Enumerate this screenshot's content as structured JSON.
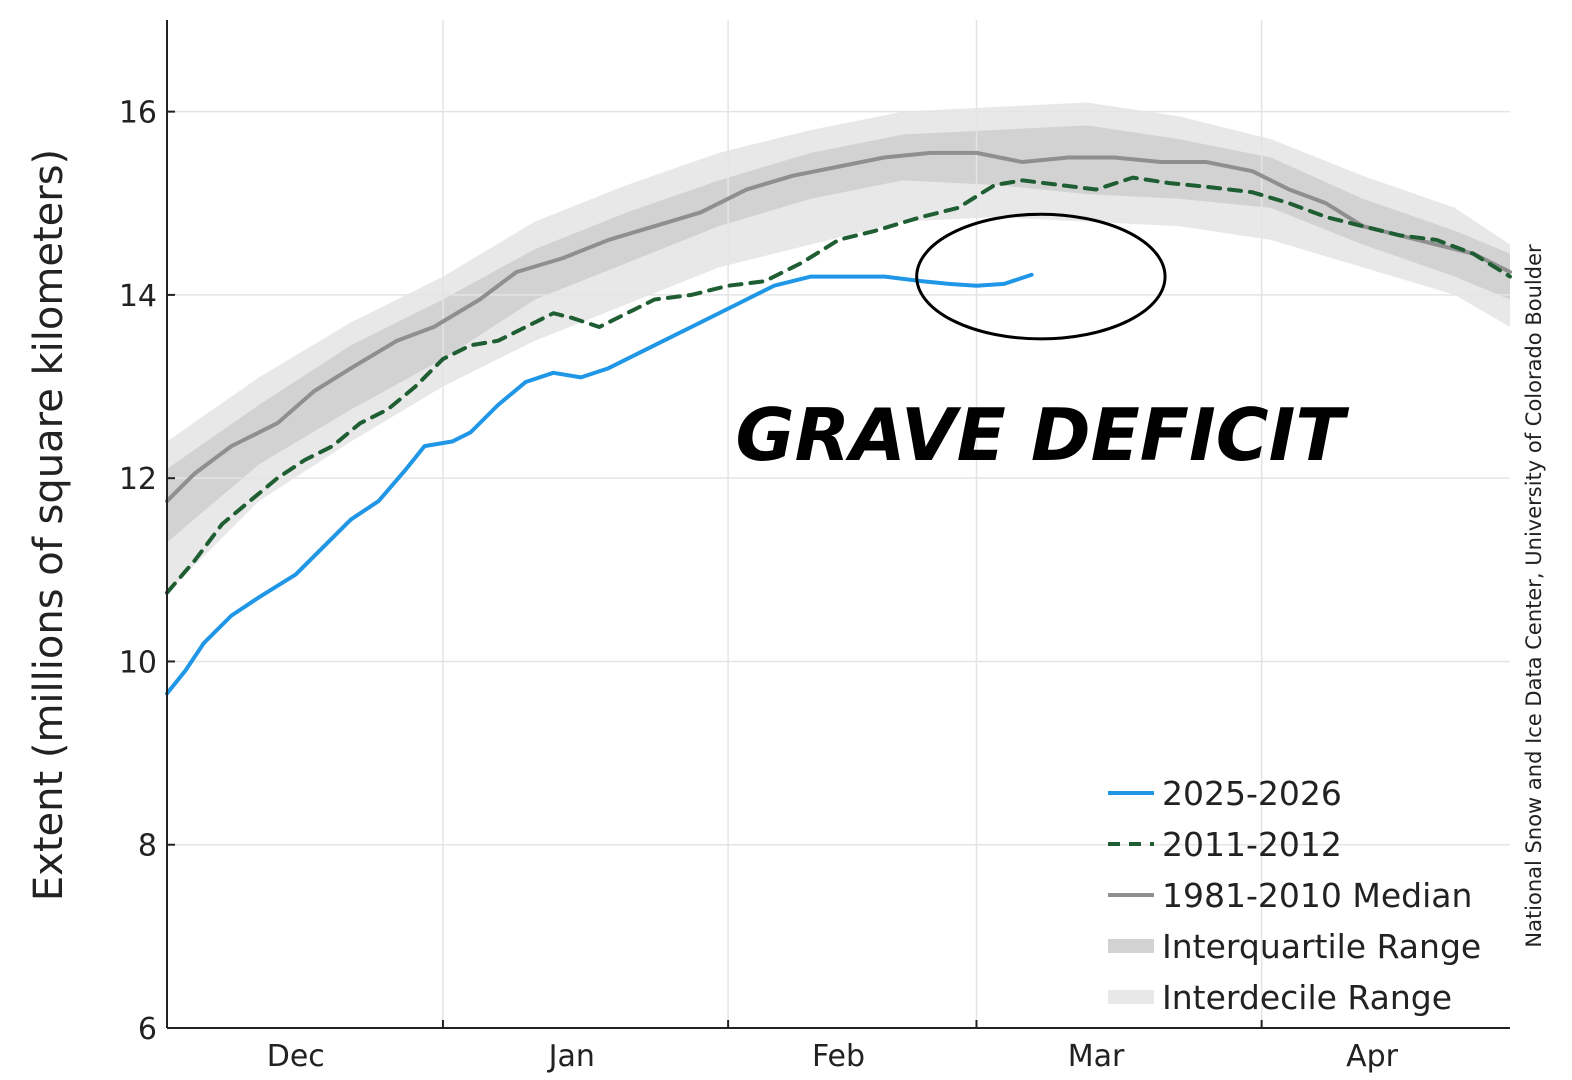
{
  "chart_data": {
    "type": "line",
    "title": "",
    "xlabel": "",
    "ylabel": "Extent (millions of square kilometers)",
    "ylim": [
      6,
      17
    ],
    "xlim": [
      0,
      146
    ],
    "y_ticks": [
      6,
      8,
      10,
      12,
      14,
      16
    ],
    "x_ticks": [
      {
        "label": "Dec",
        "x": 14
      },
      {
        "label": "Jan",
        "x": 44
      },
      {
        "label": "Feb",
        "x": 73
      },
      {
        "label": "Mar",
        "x": 101
      },
      {
        "label": "Apr",
        "x": 131
      }
    ],
    "x_gridlines": [
      30,
      61,
      88,
      119
    ],
    "grid": true,
    "legend_position": "bottom-right",
    "annotation_text": "GRAVE DEFICIT",
    "credit": "National Snow and Ice Data Center, University of Colorado Boulder",
    "colors": {
      "current": "#1f97e6",
      "y2011": "#1e5e32",
      "median": "#8f8f8f",
      "interquartile": "#d2d2d2",
      "interdecile": "#e8e8e8"
    },
    "series": [
      {
        "name": "2025-2026",
        "points": [
          [
            0,
            9.65
          ],
          [
            2,
            9.9
          ],
          [
            4,
            10.2
          ],
          [
            7,
            10.5
          ],
          [
            10,
            10.7
          ],
          [
            14,
            10.95
          ],
          [
            17,
            11.25
          ],
          [
            20,
            11.55
          ],
          [
            23,
            11.75
          ],
          [
            26,
            12.1
          ],
          [
            28,
            12.35
          ],
          [
            31,
            12.4
          ],
          [
            33,
            12.5
          ],
          [
            36,
            12.8
          ],
          [
            39,
            13.05
          ],
          [
            42,
            13.15
          ],
          [
            45,
            13.1
          ],
          [
            48,
            13.2
          ],
          [
            51,
            13.35
          ],
          [
            54,
            13.5
          ],
          [
            57,
            13.65
          ],
          [
            60,
            13.8
          ],
          [
            63,
            13.95
          ],
          [
            66,
            14.1
          ],
          [
            70,
            14.2
          ],
          [
            74,
            14.2
          ],
          [
            78,
            14.2
          ],
          [
            82,
            14.15
          ],
          [
            85,
            14.12
          ],
          [
            88,
            14.1
          ],
          [
            91,
            14.12
          ],
          [
            94,
            14.22
          ]
        ]
      },
      {
        "name": "2011-2012",
        "points": [
          [
            0,
            10.75
          ],
          [
            3,
            11.1
          ],
          [
            6,
            11.5
          ],
          [
            9,
            11.75
          ],
          [
            12,
            12.0
          ],
          [
            15,
            12.2
          ],
          [
            18,
            12.35
          ],
          [
            21,
            12.6
          ],
          [
            24,
            12.75
          ],
          [
            27,
            13.0
          ],
          [
            30,
            13.3
          ],
          [
            33,
            13.45
          ],
          [
            36,
            13.5
          ],
          [
            39,
            13.65
          ],
          [
            42,
            13.8
          ],
          [
            44,
            13.75
          ],
          [
            47,
            13.65
          ],
          [
            50,
            13.8
          ],
          [
            53,
            13.95
          ],
          [
            57,
            14.0
          ],
          [
            61,
            14.1
          ],
          [
            65,
            14.15
          ],
          [
            69,
            14.35
          ],
          [
            73,
            14.6
          ],
          [
            77,
            14.7
          ],
          [
            82,
            14.85
          ],
          [
            86,
            14.95
          ],
          [
            90,
            15.2
          ],
          [
            93,
            15.25
          ],
          [
            97,
            15.2
          ],
          [
            101,
            15.15
          ],
          [
            105,
            15.28
          ],
          [
            109,
            15.22
          ],
          [
            113,
            15.18
          ],
          [
            118,
            15.12
          ],
          [
            122,
            15.0
          ],
          [
            126,
            14.85
          ],
          [
            130,
            14.75
          ],
          [
            134,
            14.65
          ],
          [
            138,
            14.6
          ],
          [
            142,
            14.45
          ],
          [
            146,
            14.2
          ]
        ]
      },
      {
        "name": "1981-2010 Median",
        "points": [
          [
            0,
            11.75
          ],
          [
            3,
            12.05
          ],
          [
            7,
            12.35
          ],
          [
            12,
            12.6
          ],
          [
            16,
            12.95
          ],
          [
            20,
            13.2
          ],
          [
            25,
            13.5
          ],
          [
            29,
            13.65
          ],
          [
            34,
            13.95
          ],
          [
            38,
            14.25
          ],
          [
            43,
            14.4
          ],
          [
            48,
            14.6
          ],
          [
            53,
            14.75
          ],
          [
            58,
            14.9
          ],
          [
            63,
            15.15
          ],
          [
            68,
            15.3
          ],
          [
            73,
            15.4
          ],
          [
            78,
            15.5
          ],
          [
            83,
            15.55
          ],
          [
            88,
            15.55
          ],
          [
            93,
            15.45
          ],
          [
            98,
            15.5
          ],
          [
            103,
            15.5
          ],
          [
            108,
            15.45
          ],
          [
            113,
            15.45
          ],
          [
            118,
            15.35
          ],
          [
            122,
            15.15
          ],
          [
            126,
            15.0
          ],
          [
            130,
            14.75
          ],
          [
            134,
            14.65
          ],
          [
            138,
            14.55
          ],
          [
            142,
            14.45
          ],
          [
            146,
            14.25
          ]
        ]
      }
    ],
    "interquartile_range": {
      "name": "Interquartile Range",
      "x": [
        0,
        10,
        20,
        30,
        40,
        50,
        60,
        70,
        80,
        90,
        100,
        110,
        120,
        130,
        140,
        146
      ],
      "upper": [
        12.1,
        12.8,
        13.45,
        13.95,
        14.5,
        14.9,
        15.25,
        15.55,
        15.75,
        15.8,
        15.85,
        15.7,
        15.5,
        15.05,
        14.7,
        14.45
      ],
      "lower": [
        11.3,
        12.15,
        12.75,
        13.3,
        13.95,
        14.35,
        14.75,
        15.05,
        15.25,
        15.2,
        15.1,
        15.05,
        14.95,
        14.55,
        14.2,
        13.95
      ]
    },
    "interdecile_range": {
      "name": "Interdecile Range",
      "x": [
        0,
        10,
        20,
        30,
        40,
        50,
        60,
        70,
        80,
        90,
        100,
        110,
        120,
        130,
        140,
        146
      ],
      "upper": [
        12.4,
        13.1,
        13.7,
        14.2,
        14.8,
        15.2,
        15.55,
        15.8,
        16.0,
        16.05,
        16.1,
        15.95,
        15.7,
        15.3,
        14.95,
        14.55
      ],
      "lower": [
        10.75,
        11.75,
        12.4,
        13.0,
        13.5,
        13.9,
        14.3,
        14.55,
        14.8,
        14.85,
        14.8,
        14.75,
        14.6,
        14.3,
        14.0,
        13.65
      ]
    },
    "ellipse_highlight": {
      "cx": 95,
      "cy": 14.2,
      "rx": 13.5,
      "ry": 0.68
    }
  }
}
